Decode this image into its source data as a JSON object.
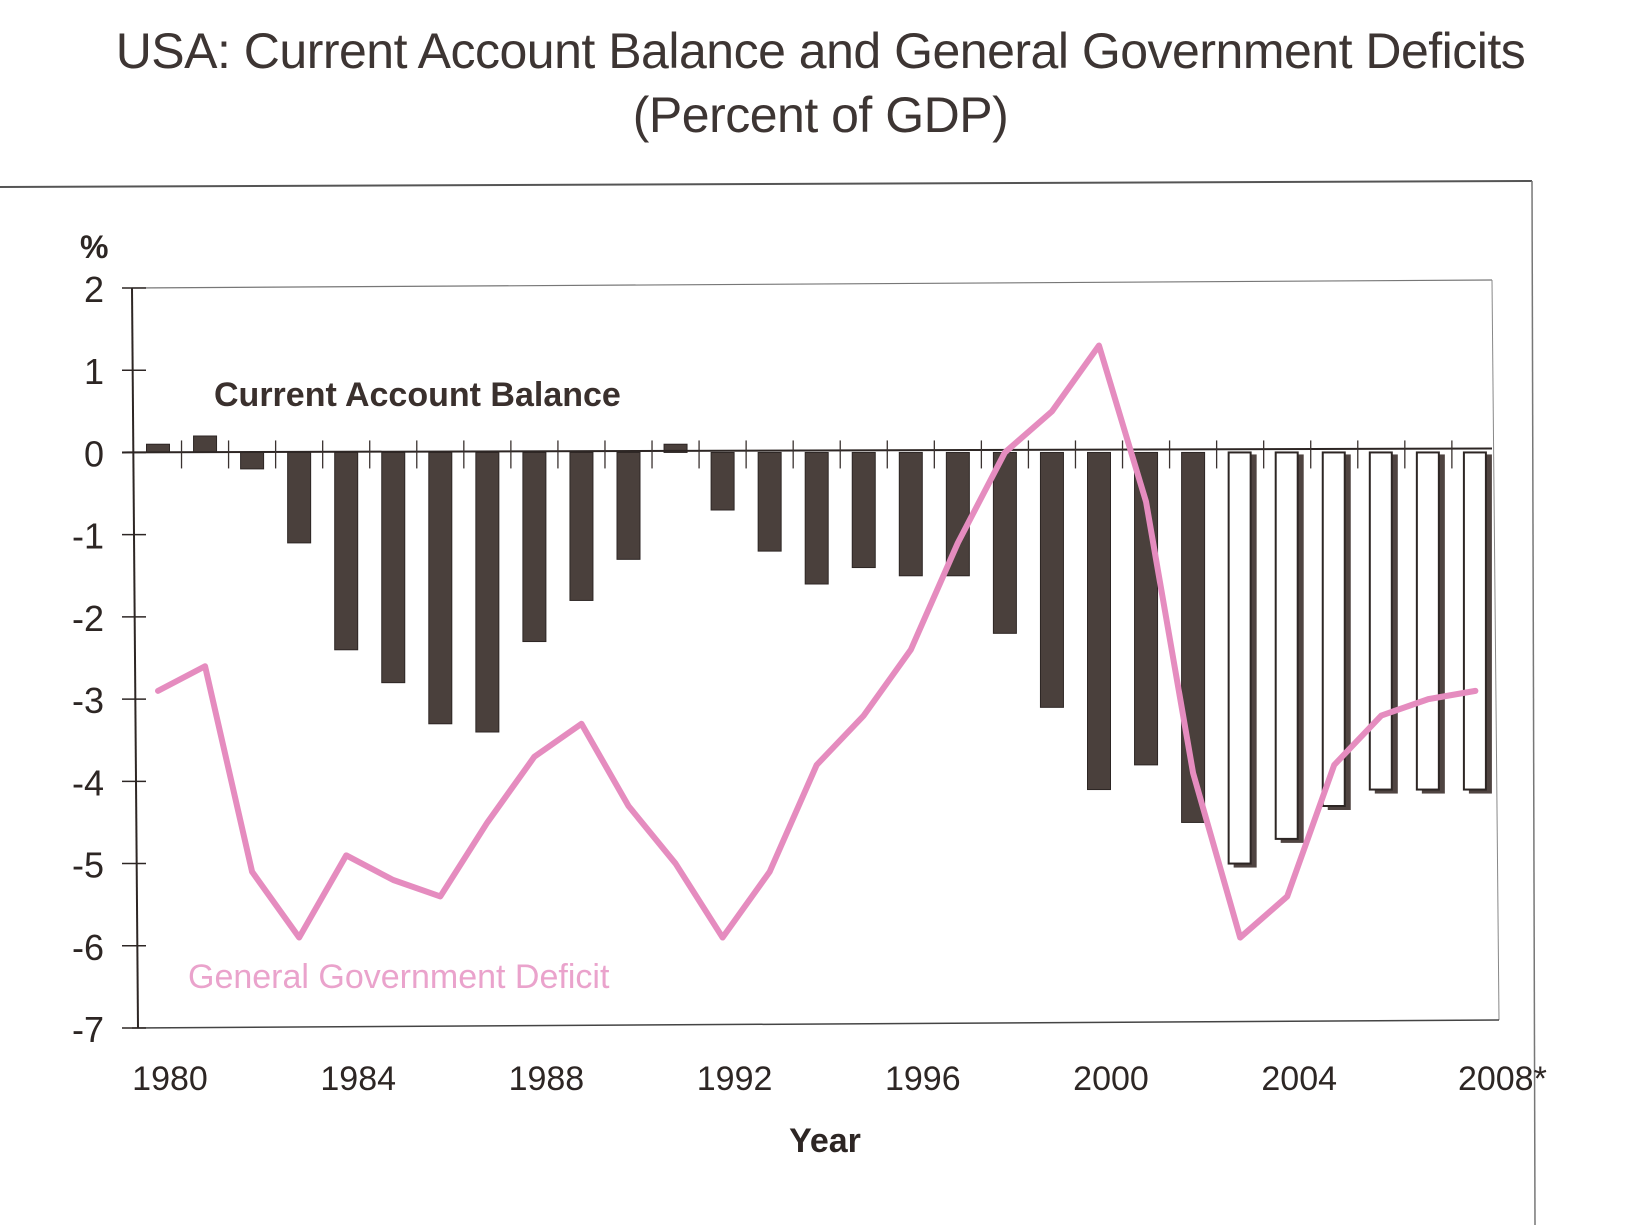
{
  "chart_data": {
    "type": "bar",
    "title": "USA: Current Account Balance and General Government Deficits",
    "subtitle": "(Percent of GDP)",
    "xlabel": "Year",
    "ylabel": "%",
    "ylim": [
      -7,
      2
    ],
    "yticks": [
      2,
      1,
      0,
      -1,
      -2,
      -3,
      -4,
      -5,
      -6,
      -7
    ],
    "xtick_labels": [
      "1980",
      "1984",
      "1988",
      "1992",
      "1996",
      "2000",
      "2004",
      "2008*"
    ],
    "grid": false,
    "categories": [
      1980,
      1981,
      1982,
      1983,
      1984,
      1985,
      1986,
      1987,
      1988,
      1989,
      1990,
      1991,
      1992,
      1993,
      1994,
      1995,
      1996,
      1997,
      1998,
      1999,
      2000,
      2001,
      2002,
      2003,
      2004,
      2005,
      2006,
      2007,
      2008
    ],
    "series": [
      {
        "name": "Current Account Balance",
        "kind": "bar",
        "color": "#4a403c",
        "projected_from": 2003,
        "values": [
          0.1,
          0.2,
          -0.2,
          -1.1,
          -2.4,
          -2.8,
          -3.3,
          -3.4,
          -2.3,
          -1.8,
          -1.3,
          0.1,
          -0.7,
          -1.2,
          -1.6,
          -1.4,
          -1.5,
          -1.5,
          -2.2,
          -3.1,
          -4.1,
          -3.8,
          -4.5,
          -5.0,
          -4.7,
          -4.3,
          -4.1,
          -4.1,
          -4.1
        ]
      },
      {
        "name": "General Government Deficit",
        "kind": "line",
        "color": "#e58cbf",
        "values": [
          -2.9,
          -2.6,
          -5.1,
          -5.9,
          -4.9,
          -5.2,
          -5.4,
          -4.5,
          -3.7,
          -3.3,
          -4.3,
          -5.0,
          -5.9,
          -5.1,
          -3.8,
          -3.2,
          -2.4,
          -1.1,
          0.0,
          0.5,
          1.3,
          -0.6,
          -3.9,
          -5.9,
          -5.4,
          -3.8,
          -3.2,
          -3.0,
          -2.9
        ]
      }
    ],
    "annotations": [
      {
        "text": "Current Account Balance",
        "series": "Current Account Balance"
      },
      {
        "text": "General Government Deficit",
        "series": "General Government Deficit"
      }
    ]
  }
}
